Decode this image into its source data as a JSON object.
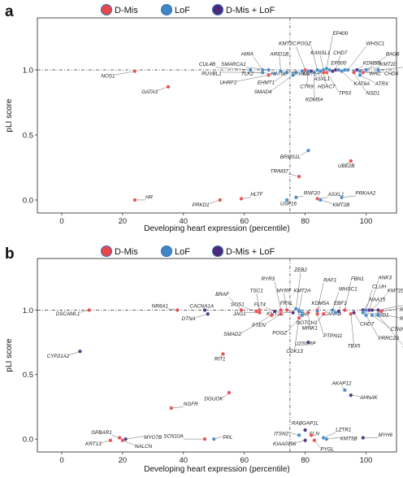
{
  "colors": {
    "d_mis": "#e8464a",
    "lof": "#3f86c6",
    "both": "#4b2a7a",
    "d_mis_light": "#f08a86",
    "lof_light": "#7fb2dc"
  },
  "legend": [
    {
      "key": "d_mis",
      "label": "D-Mis"
    },
    {
      "key": "lof",
      "label": "LoF"
    },
    {
      "key": "both",
      "label": "D-Mis + LoF"
    }
  ],
  "chart_data": [
    {
      "panel": "a",
      "type": "scatter",
      "xlabel": "Developing heart expression (percentile)",
      "ylabel": "pLI score",
      "xlim": [
        -8,
        110
      ],
      "ylim": [
        -0.1,
        1.4
      ],
      "xticks": [
        0,
        20,
        40,
        60,
        80,
        100
      ],
      "yticks": [
        0.0,
        0.5,
        1.0
      ],
      "ref_x": 75,
      "ref_y": 1.0,
      "points": [
        {
          "gene": "NOS1",
          "x": 24,
          "y": 0.99,
          "cat": "d_mis",
          "lx": 17.5,
          "ly": 0.94
        },
        {
          "gene": "GATA3",
          "x": 35,
          "y": 0.87,
          "cat": "d_mis",
          "lx": 31.5,
          "ly": 0.82
        },
        {
          "gene": "CUL4B",
          "x": 62,
          "y": 1.0,
          "cat": "lof",
          "lx": 50.5,
          "ly": 1.03
        },
        {
          "gene": "HIRA",
          "x": 66,
          "y": 1.0,
          "cat": "lof",
          "lx": 63,
          "ly": 1.11
        },
        {
          "gene": "SMARCA1",
          "x": 68,
          "y": 1.0,
          "cat": "lof",
          "lx": 60.5,
          "ly": 1.03
        },
        {
          "gene": "RUVBL1",
          "x": 66,
          "y": 0.98,
          "cat": "lof",
          "lx": 52.5,
          "ly": 0.96
        },
        {
          "gene": "TLK2",
          "x": 70,
          "y": 0.97,
          "cat": "lof",
          "lx": 63,
          "ly": 0.96
        },
        {
          "gene": "ARID1B",
          "x": 72,
          "y": 0.99,
          "cat": "lof",
          "lx": 71.5,
          "ly": 1.11
        },
        {
          "gene": "UHRF2",
          "x": 68,
          "y": 0.96,
          "cat": "d_mis",
          "lx": 57.5,
          "ly": 0.89
        },
        {
          "gene": "EHMT1",
          "x": 74,
          "y": 0.98,
          "cat": "lof",
          "lx": 70,
          "ly": 0.89
        },
        {
          "gene": "KAT6B",
          "x": 77,
          "y": 0.98,
          "cat": "lof",
          "lx": 74,
          "ly": 0.96
        },
        {
          "gene": "SMAD4",
          "x": 76,
          "y": 0.96,
          "cat": "lof",
          "lx": 69,
          "ly": 0.82
        },
        {
          "gene": "KMT2C",
          "x": 80,
          "y": 1.0,
          "cat": "d_mis",
          "lx": 77,
          "ly": 1.19
        },
        {
          "gene": "POGZ",
          "x": 84,
          "y": 1.0,
          "cat": "lof",
          "lx": 82,
          "ly": 1.19
        },
        {
          "gene": "EP400",
          "x": 87,
          "y": 1.01,
          "cat": "lof",
          "lx": 89,
          "ly": 1.27
        },
        {
          "gene": "KANSL1",
          "x": 86,
          "y": 1.0,
          "cat": "lof",
          "lx": 85,
          "ly": 1.12
        },
        {
          "gene": "CHD7",
          "x": 90,
          "y": 1.0,
          "cat": "both",
          "lx": 91.5,
          "ly": 1.12
        },
        {
          "gene": "WHSC1",
          "x": 94,
          "y": 1.0,
          "cat": "lof",
          "lx": 100,
          "ly": 1.19
        },
        {
          "gene": "BAG6",
          "x": 100,
          "y": 1.0,
          "cat": "lof",
          "lx": 106.5,
          "ly": 1.11
        },
        {
          "gene": "KMT2D",
          "x": 97,
          "y": 1.0,
          "cat": "both",
          "lx": 104.5,
          "ly": 1.03
        },
        {
          "gene": "CTNNB1",
          "x": 104,
          "y": 1.0,
          "cat": "lof",
          "lx": 112.5,
          "ly": 1.03
        },
        {
          "gene": "EP300",
          "x": 91,
          "y": 1.0,
          "cat": "lof",
          "lx": 91,
          "ly": 1.04
        },
        {
          "gene": "KDM5B",
          "x": 96,
          "y": 0.99,
          "cat": "lof",
          "lx": 99,
          "ly": 1.04
        },
        {
          "gene": "CHD4",
          "x": 99,
          "y": 0.98,
          "cat": "d_mis",
          "lx": 106,
          "ly": 0.96
        },
        {
          "gene": "WAC",
          "x": 98,
          "y": 0.99,
          "cat": "lof",
          "lx": 101,
          "ly": 0.96
        },
        {
          "gene": "ATRX",
          "x": 98,
          "y": 0.96,
          "cat": "lof",
          "lx": 103,
          "ly": 0.88
        },
        {
          "gene": "KAT6A",
          "x": 92,
          "y": 0.99,
          "cat": "lof",
          "lx": 96,
          "ly": 0.88
        },
        {
          "gene": "NSD1",
          "x": 96,
          "y": 0.98,
          "cat": "d_mis",
          "lx": 100,
          "ly": 0.81
        },
        {
          "gene": "TP53",
          "x": 87,
          "y": 0.98,
          "cat": "d_mis",
          "lx": 91,
          "ly": 0.81
        },
        {
          "gene": "HDAC7",
          "x": 86,
          "y": 0.98,
          "cat": "d_mis",
          "lx": 87,
          "ly": 0.86
        },
        {
          "gene": "ASXL1",
          "x": 85,
          "y": 0.99,
          "cat": "lof",
          "lx": 85.5,
          "ly": 0.92
        },
        {
          "gene": "KMT2A",
          "x": 82,
          "y": 0.99,
          "cat": "both",
          "lx": 82,
          "ly": 0.96
        },
        {
          "gene": "KDM5A",
          "x": 83,
          "y": 0.98,
          "cat": "lof",
          "lx": 83,
          "ly": 0.76
        },
        {
          "gene": "CTR9",
          "x": 81,
          "y": 0.99,
          "cat": "lof",
          "lx": 80.5,
          "ly": 0.86
        },
        {
          "gene": "BRWD1",
          "x": 79,
          "y": 0.99,
          "cat": "lof",
          "lx": 78.5,
          "ly": 0.96
        },
        {
          "gene": "NCOR2",
          "x": 89,
          "y": 0.99,
          "cat": "both",
          "lx": 89,
          "ly": 0.99,
          "nolabel": true
        },
        {
          "gene": "KMT2E",
          "x": 93,
          "y": 1.0,
          "cat": "lof",
          "lx": 93,
          "ly": 1.0,
          "nolabel": true
        },
        {
          "gene": "SETD2",
          "x": 88,
          "y": 1.0,
          "cat": "lof",
          "lx": 88,
          "ly": 1.0,
          "nolabel": true
        },
        {
          "gene": "BRMS1L",
          "x": 81,
          "y": 0.38,
          "cat": "lof",
          "lx": 78.5,
          "ly": 0.32
        },
        {
          "gene": "UBE2B",
          "x": 95,
          "y": 0.3,
          "cat": "d_mis",
          "lx": 93.5,
          "ly": 0.25
        },
        {
          "gene": "TRIM37",
          "x": 78,
          "y": 0.18,
          "cat": "d_mis",
          "lx": 74.5,
          "ly": 0.21
        },
        {
          "gene": "HR",
          "x": 24,
          "y": 0.0,
          "cat": "d_mis",
          "lx": 27.5,
          "ly": 0.01
        },
        {
          "gene": "PRKD1",
          "x": 52,
          "y": 0.0,
          "cat": "d_mis",
          "lx": 48.5,
          "ly": -0.05
        },
        {
          "gene": "HLTF",
          "x": 59,
          "y": 0.01,
          "cat": "d_mis",
          "lx": 62,
          "ly": 0.03
        },
        {
          "gene": "RNF20",
          "x": 77,
          "y": 0.02,
          "cat": "lof",
          "lx": 79.5,
          "ly": 0.04
        },
        {
          "gene": "USP16",
          "x": 74,
          "y": 0.0,
          "cat": "lof",
          "lx": 74.5,
          "ly": -0.04
        },
        {
          "gene": "ASXL1",
          "x": 84,
          "y": 0.01,
          "cat": "d_mis",
          "lx": 87.5,
          "ly": 0.03
        },
        {
          "gene": "KMT2B",
          "x": 85,
          "y": 0.0,
          "cat": "lof",
          "lx": 89,
          "ly": -0.05
        },
        {
          "gene": "PRKAA2",
          "x": 92,
          "y": 0.02,
          "cat": "lof",
          "lx": 96.5,
          "ly": 0.04
        }
      ]
    },
    {
      "panel": "b",
      "type": "scatter",
      "xlabel": "Developing heart expression (percentile)",
      "ylabel": "pLI score",
      "xlim": [
        -8,
        110
      ],
      "ylim": [
        -0.1,
        1.4
      ],
      "xticks": [
        0,
        20,
        40,
        60,
        80,
        100
      ],
      "yticks": [
        0.0,
        0.5,
        1.0
      ],
      "ref_x": 75,
      "ref_y": 1.0,
      "points": [
        {
          "gene": "DSCAML1",
          "x": 9,
          "y": 1.0,
          "cat": "d_mis",
          "lx": 6,
          "ly": 0.96
        },
        {
          "gene": "NR6A1",
          "x": 38,
          "y": 1.0,
          "cat": "d_mis",
          "lx": 35,
          "ly": 1.02
        },
        {
          "gene": "CACNA1A",
          "x": 47,
          "y": 1.0,
          "cat": "both",
          "lx": 46,
          "ly": 1.02
        },
        {
          "gene": "DTNA",
          "x": 48,
          "y": 0.97,
          "cat": "both",
          "lx": 44,
          "ly": 0.92
        },
        {
          "gene": "CYP21A2",
          "x": 6,
          "y": 0.68,
          "cat": "both",
          "lx": 2.5,
          "ly": 0.63
        },
        {
          "gene": "RIT1",
          "x": 53,
          "y": 0.66,
          "cat": "d_mis",
          "lx": 52,
          "ly": 0.61
        },
        {
          "gene": "BRAF",
          "x": 59,
          "y": 1.0,
          "cat": "d_mis",
          "lx": 55,
          "ly": 1.11
        },
        {
          "gene": "TSC1",
          "x": 65,
          "y": 1.0,
          "cat": "d_mis",
          "lx": 64,
          "ly": 1.14
        },
        {
          "gene": "SOS1",
          "x": 64,
          "y": 0.99,
          "cat": "d_mis",
          "lx": 60,
          "ly": 1.03
        },
        {
          "gene": "JAG1",
          "x": 65,
          "y": 0.98,
          "cat": "d_mis",
          "lx": 60.5,
          "ly": 0.96
        },
        {
          "gene": "FLT4",
          "x": 70,
          "y": 0.99,
          "cat": "both",
          "lx": 67,
          "ly": 1.03
        },
        {
          "gene": "RYR3",
          "x": 72,
          "y": 1.0,
          "cat": "d_mis",
          "lx": 70,
          "ly": 1.23
        },
        {
          "gene": "MYRF",
          "x": 74,
          "y": 1.0,
          "cat": "d_mis",
          "lx": 73,
          "ly": 1.14
        },
        {
          "gene": "ZEB2",
          "x": 77,
          "y": 1.01,
          "cat": "lof",
          "lx": 78.5,
          "ly": 1.3
        },
        {
          "gene": "KMT2A",
          "x": 78,
          "y": 1.0,
          "cat": "lof",
          "lx": 79,
          "ly": 1.14
        },
        {
          "gene": "FRYL",
          "x": 78,
          "y": 0.99,
          "cat": "lof",
          "lx": 76,
          "ly": 1.04
        },
        {
          "gene": "KMT2C",
          "x": 76,
          "y": 0.98,
          "cat": "both",
          "lx": 73,
          "ly": 0.96
        },
        {
          "gene": "CAD",
          "x": 79,
          "y": 0.98,
          "cat": "lof",
          "lx": 79.5,
          "ly": 0.96
        },
        {
          "gene": "PTEN",
          "x": 72,
          "y": 0.97,
          "cat": "d_mis",
          "lx": 67,
          "ly": 0.87
        },
        {
          "gene": "SMAD2",
          "x": 69,
          "y": 0.96,
          "cat": "d_mis",
          "lx": 59,
          "ly": 0.8
        },
        {
          "gene": "POGZ",
          "x": 79,
          "y": 0.96,
          "cat": "lof",
          "lx": 74,
          "ly": 0.81
        },
        {
          "gene": "RAF1",
          "x": 84,
          "y": 1.0,
          "cat": "d_mis",
          "lx": 86,
          "ly": 1.22
        },
        {
          "gene": "KDM5A",
          "x": 84,
          "y": 0.99,
          "cat": "lof",
          "lx": 85,
          "ly": 1.04
        },
        {
          "gene": "WHSC1",
          "x": 89,
          "y": 1.0,
          "cat": "lof",
          "lx": 91,
          "ly": 1.15
        },
        {
          "gene": "FBN1",
          "x": 93,
          "y": 1.0,
          "cat": "d_mis",
          "lx": 95,
          "ly": 1.23
        },
        {
          "gene": "ANK3",
          "x": 101,
          "y": 1.0,
          "cat": "both",
          "lx": 104,
          "ly": 1.24
        },
        {
          "gene": "CLUH",
          "x": 100,
          "y": 1.0,
          "cat": "lof",
          "lx": 102,
          "ly": 1.17
        },
        {
          "gene": "KMT2D",
          "x": 102,
          "y": 1.0,
          "cat": "both",
          "lx": 107,
          "ly": 1.14
        },
        {
          "gene": "NAA15",
          "x": 99,
          "y": 1.0,
          "cat": "both",
          "lx": 101,
          "ly": 1.07
        },
        {
          "gene": "CHD4",
          "x": 104,
          "y": 1.0,
          "cat": "both",
          "lx": 113,
          "ly": 1.05
        },
        {
          "gene": "RPL5",
          "x": 105,
          "y": 0.99,
          "cat": "d_mis",
          "lx": 111,
          "ly": 0.99
        },
        {
          "gene": "EBF1",
          "x": 91,
          "y": 0.99,
          "cat": "both",
          "lx": 91.5,
          "ly": 1.04
        },
        {
          "gene": "CANAB",
          "x": 90,
          "y": 0.98,
          "cat": "lof",
          "lx": 89,
          "ly": 0.96
        },
        {
          "gene": "NSD1",
          "x": 99,
          "y": 0.98,
          "cat": "lof",
          "lx": 103,
          "ly": 0.95
        },
        {
          "gene": "RBFOX2",
          "x": 104,
          "y": 0.97,
          "cat": "lof",
          "lx": 111,
          "ly": 0.92
        },
        {
          "gene": "NOTCH1",
          "x": 86,
          "y": 0.97,
          "cat": "d_mis",
          "lx": 84,
          "ly": 0.89
        },
        {
          "gene": "CHD7",
          "x": 96,
          "y": 0.98,
          "cat": "both",
          "lx": 98,
          "ly": 0.88
        },
        {
          "gene": "CTNNB1",
          "x": 102,
          "y": 0.96,
          "cat": "lof",
          "lx": 108,
          "ly": 0.84
        },
        {
          "gene": "PRRC2B",
          "x": 100,
          "y": 0.96,
          "cat": "lof",
          "lx": 104,
          "ly": 0.77
        },
        {
          "gene": "ACTB",
          "x": 104,
          "y": 0.96,
          "cat": "lof",
          "lx": 112,
          "ly": 0.71
        },
        {
          "gene": "MINK1",
          "x": 81,
          "y": 0.98,
          "cat": "d_mis",
          "lx": 81.5,
          "ly": 0.85
        },
        {
          "gene": "PTPN11",
          "x": 84,
          "y": 0.97,
          "cat": "d_mis",
          "lx": 86,
          "ly": 0.79
        },
        {
          "gene": "TBX5",
          "x": 95,
          "y": 0.97,
          "cat": "d_mis",
          "lx": 96,
          "ly": 0.71
        },
        {
          "gene": "U2SURP",
          "x": 81,
          "y": 0.75,
          "cat": "both",
          "lx": 80,
          "ly": 0.73
        },
        {
          "gene": "CDK13",
          "x": 78,
          "y": 0.94,
          "cat": "d_mis",
          "lx": 76.5,
          "ly": 0.67
        },
        {
          "gene": "AKAP12",
          "x": 93,
          "y": 0.38,
          "cat": "lof",
          "lx": 92,
          "ly": 0.42
        },
        {
          "gene": "AHNAK",
          "x": 95,
          "y": 0.34,
          "cat": "both",
          "lx": 98,
          "ly": 0.31
        },
        {
          "gene": "NGFR",
          "x": 36,
          "y": 0.24,
          "cat": "d_mis",
          "lx": 40,
          "ly": 0.26
        },
        {
          "gene": "DGUOK",
          "x": 55,
          "y": 0.36,
          "cat": "d_mis",
          "lx": 53,
          "ly": 0.3
        },
        {
          "gene": "GPBAR1",
          "x": 19,
          "y": 0.01,
          "cat": "d_mis",
          "lx": 16.5,
          "ly": 0.04
        },
        {
          "gene": "MYO7B",
          "x": 21,
          "y": 0.0,
          "cat": "both",
          "lx": 27,
          "ly": 0.0
        },
        {
          "gene": "KRT13",
          "x": 16,
          "y": -0.01,
          "cat": "d_mis",
          "lx": 13,
          "ly": -0.05
        },
        {
          "gene": "NALCN",
          "x": 20,
          "y": -0.01,
          "cat": "d_mis",
          "lx": 24,
          "ly": -0.07
        },
        {
          "gene": "SCN10A",
          "x": 47,
          "y": 0.0,
          "cat": "d_mis",
          "lx": 40,
          "ly": 0.01
        },
        {
          "gene": "PPL",
          "x": 50,
          "y": 0.0,
          "cat": "lof",
          "lx": 53,
          "ly": 0.0
        },
        {
          "gene": "RABGAP1L",
          "x": 80,
          "y": 0.07,
          "cat": "both",
          "lx": 80,
          "ly": 0.11
        },
        {
          "gene": "ITSN2",
          "x": 78,
          "y": 0.03,
          "cat": "lof",
          "lx": 74.5,
          "ly": 0.03
        },
        {
          "gene": "ELN",
          "x": 82,
          "y": 0.03,
          "cat": "d_mis",
          "lx": 83,
          "ly": 0.03
        },
        {
          "gene": "LZTR1",
          "x": 86,
          "y": 0.01,
          "cat": "lof",
          "lx": 90,
          "ly": 0.06
        },
        {
          "gene": "KIAA0196",
          "x": 80,
          "y": -0.01,
          "cat": "both",
          "lx": 77,
          "ly": -0.05
        },
        {
          "gene": "KMT5B",
          "x": 87,
          "y": 0.0,
          "cat": "lof",
          "lx": 91.5,
          "ly": -0.01
        },
        {
          "gene": "PYGL",
          "x": 83,
          "y": -0.01,
          "cat": "d_mis",
          "lx": 85,
          "ly": -0.09
        },
        {
          "gene": "MYH6",
          "x": 99,
          "y": 0.01,
          "cat": "both",
          "lx": 104,
          "ly": 0.02
        }
      ]
    }
  ]
}
